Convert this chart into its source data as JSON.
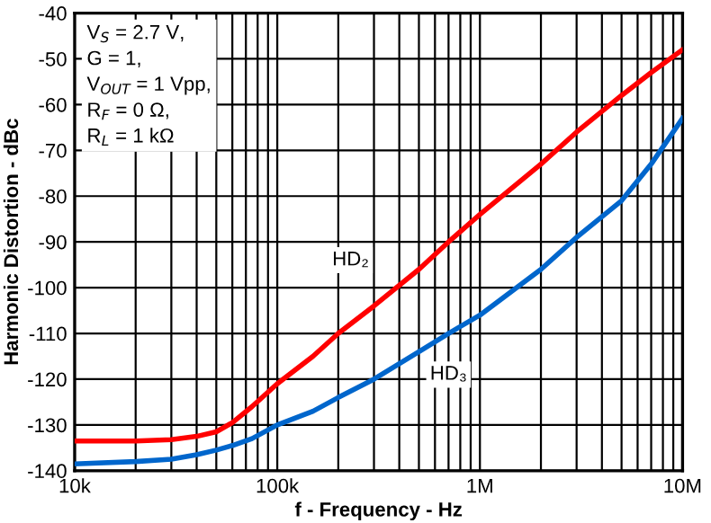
{
  "chart_data": {
    "type": "line",
    "xlabel": "f - Frequency - Hz",
    "ylabel": "Harmonic Distortion - dBc",
    "log": "x",
    "grid": true,
    "x": [
      10000,
      20000,
      30000,
      40000,
      50000,
      60000,
      75000,
      100000,
      150000,
      200000,
      300000,
      500000,
      700000,
      1000000,
      2000000,
      3000000,
      5000000,
      7000000,
      10000000
    ],
    "series": [
      {
        "color": "#ff0000",
        "values": [
          -133.5,
          -133.5,
          -133.2,
          -132.5,
          -131.5,
          -129.5,
          -126,
          -121,
          -115,
          -110,
          -104,
          -96,
          -90,
          -84,
          -73,
          -66,
          -58,
          -53,
          -48
        ]
      },
      {
        "color": "#0066cc",
        "values": [
          -138.5,
          -138,
          -137.5,
          -136.5,
          -135.5,
          -134.5,
          -133,
          -130,
          -127,
          -124,
          -120,
          -114,
          -110,
          -106,
          -96,
          -89,
          -81,
          -73,
          -63
        ]
      }
    ],
    "xlim": [
      10000,
      10000000
    ],
    "xticks": [
      {
        "value": 10000,
        "label": "10k"
      },
      {
        "value": 20000,
        "label": null
      },
      {
        "value": 30000,
        "label": null
      },
      {
        "value": 40000,
        "label": null
      },
      {
        "value": 50000,
        "label": null
      },
      {
        "value": 60000,
        "label": null
      },
      {
        "value": 70000,
        "label": null
      },
      {
        "value": 80000,
        "label": null
      },
      {
        "value": 90000,
        "label": null
      },
      {
        "value": 100000,
        "label": "100k"
      },
      {
        "value": 200000,
        "label": null
      },
      {
        "value": 300000,
        "label": null
      },
      {
        "value": 400000,
        "label": null
      },
      {
        "value": 500000,
        "label": null
      },
      {
        "value": 600000,
        "label": null
      },
      {
        "value": 700000,
        "label": null
      },
      {
        "value": 800000,
        "label": null
      },
      {
        "value": 900000,
        "label": null
      },
      {
        "value": 1000000,
        "label": "1M"
      },
      {
        "value": 2000000,
        "label": null
      },
      {
        "value": 3000000,
        "label": null
      },
      {
        "value": 4000000,
        "label": null
      },
      {
        "value": 5000000,
        "label": null
      },
      {
        "value": 6000000,
        "label": null
      },
      {
        "value": 7000000,
        "label": null
      },
      {
        "value": 8000000,
        "label": null
      },
      {
        "value": 9000000,
        "label": null
      },
      {
        "value": 10000000,
        "label": "10M"
      }
    ],
    "ylim": [
      -140,
      -40
    ],
    "yticks": [
      -140,
      -130,
      -120,
      -110,
      -100,
      -90,
      -80,
      -70,
      -60,
      -50,
      -40
    ],
    "annotations": [
      "V$_{S}$ = 2.7 V,\nG = 1,\nV$_{OUT}$ = 1 Vpp,\nR$_{F}$ = 0 Ω,\nR$_{L}$ = 1 kΩ",
      {
        "text": "HD₂",
        "x": 230000,
        "y": -94
      },
      {
        "text": "HD₃",
        "x": 700000,
        "y": -119
      }
    ]
  }
}
